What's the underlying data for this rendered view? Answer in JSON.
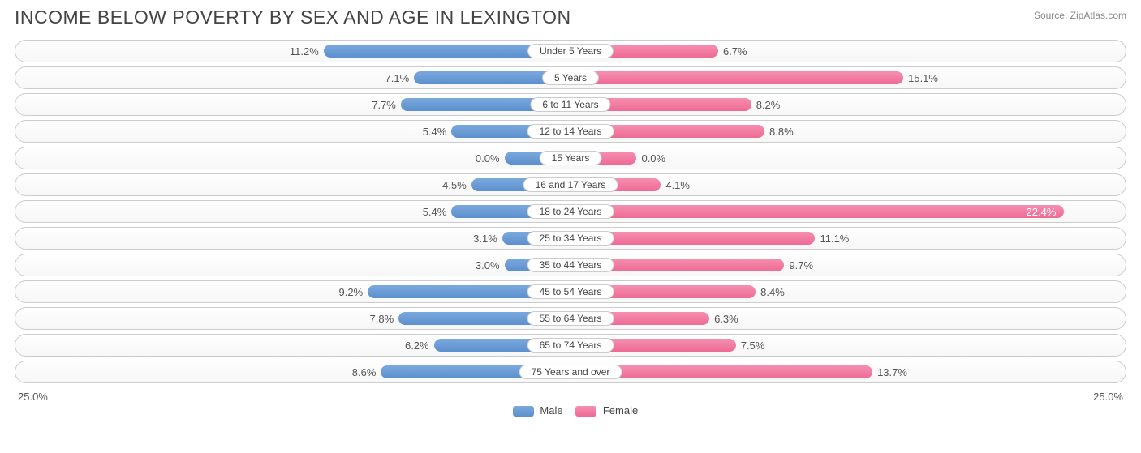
{
  "header": {
    "title": "INCOME BELOW POVERTY BY SEX AND AGE IN LEXINGTON",
    "source": "Source: ZipAtlas.com"
  },
  "chart": {
    "type": "diverging-bar",
    "axis_max": 25.0,
    "axis_label_left": "25.0%",
    "axis_label_right": "25.0%",
    "male_color_top": "#7aa9dd",
    "male_color_bottom": "#5b8fce",
    "female_color_top": "#f58fb0",
    "female_color_bottom": "#ee6a94",
    "row_border_color": "#cccccc",
    "background_color": "#ffffff",
    "text_color": "#555555",
    "title_color": "#444444",
    "bar_min_pct": 3.0,
    "rows": [
      {
        "label": "Under 5 Years",
        "male": 11.2,
        "female": 6.7,
        "male_str": "11.2%",
        "female_str": "6.7%"
      },
      {
        "label": "5 Years",
        "male": 7.1,
        "female": 15.1,
        "male_str": "7.1%",
        "female_str": "15.1%"
      },
      {
        "label": "6 to 11 Years",
        "male": 7.7,
        "female": 8.2,
        "male_str": "7.7%",
        "female_str": "8.2%"
      },
      {
        "label": "12 to 14 Years",
        "male": 5.4,
        "female": 8.8,
        "male_str": "5.4%",
        "female_str": "8.8%"
      },
      {
        "label": "15 Years",
        "male": 0.0,
        "female": 0.0,
        "male_str": "0.0%",
        "female_str": "0.0%"
      },
      {
        "label": "16 and 17 Years",
        "male": 4.5,
        "female": 4.1,
        "male_str": "4.5%",
        "female_str": "4.1%"
      },
      {
        "label": "18 to 24 Years",
        "male": 5.4,
        "female": 22.4,
        "male_str": "5.4%",
        "female_str": "22.4%"
      },
      {
        "label": "25 to 34 Years",
        "male": 3.1,
        "female": 11.1,
        "male_str": "3.1%",
        "female_str": "11.1%"
      },
      {
        "label": "35 to 44 Years",
        "male": 3.0,
        "female": 9.7,
        "male_str": "3.0%",
        "female_str": "9.7%"
      },
      {
        "label": "45 to 54 Years",
        "male": 9.2,
        "female": 8.4,
        "male_str": "9.2%",
        "female_str": "8.4%"
      },
      {
        "label": "55 to 64 Years",
        "male": 7.8,
        "female": 6.3,
        "male_str": "7.8%",
        "female_str": "6.3%"
      },
      {
        "label": "65 to 74 Years",
        "male": 6.2,
        "female": 7.5,
        "male_str": "6.2%",
        "female_str": "7.5%"
      },
      {
        "label": "75 Years and over",
        "male": 8.6,
        "female": 13.7,
        "male_str": "8.6%",
        "female_str": "13.7%"
      }
    ]
  },
  "legend": {
    "male": "Male",
    "female": "Female"
  }
}
